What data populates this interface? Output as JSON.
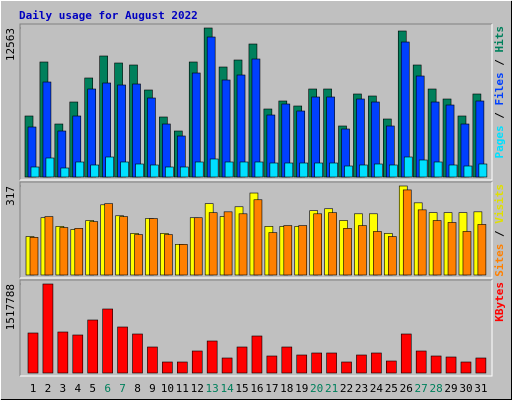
{
  "chart_data": [
    {
      "type": "bar",
      "title": "Daily usage for August 2022",
      "ylim": [
        0,
        12563
      ],
      "yticks": [
        12563
      ],
      "legend_separator": " / ",
      "series": [
        {
          "name": "Hits",
          "color": "#00805c",
          "values": [
            5143,
            9696,
            4468,
            6323,
            8347,
            10202,
            9611,
            9443,
            7335,
            5059,
            3878,
            9696,
            12563,
            9274,
            9864,
            11213,
            5733,
            6408,
            5986,
            7419,
            7419,
            4300,
            6998,
            6829,
            4890,
            12309,
            9443,
            7419,
            6576,
            5143,
            6998
          ]
        },
        {
          "name": "Files",
          "color": "#0040ff",
          "values": [
            4216,
            8009,
            3878,
            5143,
            7419,
            7925,
            7757,
            7841,
            6660,
            4468,
            3457,
            8768,
            11803,
            8178,
            8600,
            9949,
            5227,
            6155,
            5564,
            6745,
            6745,
            4047,
            6576,
            6323,
            4300,
            11382,
            8515,
            6323,
            6070,
            4468,
            6408
          ]
        },
        {
          "name": "Pages",
          "color": "#00e0ff",
          "values": [
            843,
            1602,
            759,
            1265,
            1012,
            1686,
            1265,
            1096,
            1012,
            843,
            843,
            1265,
            1518,
            1265,
            1265,
            1265,
            1180,
            1180,
            1180,
            1180,
            1180,
            927,
            1012,
            1096,
            1012,
            1686,
            1433,
            1265,
            1012,
            927,
            1096
          ]
        }
      ]
    },
    {
      "type": "bar",
      "ylim": [
        0,
        317
      ],
      "yticks": [
        317
      ],
      "legend_separator": " / ",
      "series": [
        {
          "name": "Visits",
          "color": "#ffff00",
          "values": [
            137,
            204,
            173,
            162,
            194,
            250,
            211,
            148,
            201,
            148,
            109,
            204,
            254,
            208,
            243,
            292,
            173,
            173,
            173,
            229,
            236,
            194,
            218,
            218,
            148,
            317,
            257,
            222,
            222,
            222,
            225
          ]
        },
        {
          "name": "Sites",
          "color": "#ff8000",
          "values": [
            134,
            208,
            169,
            166,
            190,
            254,
            208,
            144,
            201,
            144,
            109,
            204,
            222,
            225,
            218,
            268,
            151,
            176,
            176,
            218,
            222,
            166,
            176,
            155,
            137,
            303,
            232,
            194,
            187,
            155,
            180
          ]
        }
      ]
    },
    {
      "type": "bar",
      "ylim": [
        0,
        1517788
      ],
      "yticks": [
        1517788
      ],
      "categories": [
        "1",
        "2",
        "3",
        "4",
        "5",
        "6",
        "7",
        "8",
        "9",
        "10",
        "11",
        "12",
        "13",
        "14",
        "15",
        "16",
        "17",
        "18",
        "19",
        "20",
        "21",
        "22",
        "23",
        "24",
        "25",
        "26",
        "27",
        "28",
        "29",
        "30",
        "31"
      ],
      "category_colors": [
        "#000000",
        "#000000",
        "#000000",
        "#000000",
        "#000000",
        "#00805c",
        "#00805c",
        "#000000",
        "#000000",
        "#000000",
        "#000000",
        "#000000",
        "#00805c",
        "#00805c",
        "#000000",
        "#000000",
        "#000000",
        "#000000",
        "#000000",
        "#00805c",
        "#00805c",
        "#000000",
        "#000000",
        "#000000",
        "#000000",
        "#000000",
        "#00805c",
        "#00805c",
        "#000000",
        "#000000",
        "#000000"
      ],
      "series": [
        {
          "name": "KBytes",
          "color": "#ff0000",
          "values": [
            682160,
            1517788,
            699214,
            648052,
            903862,
            1091456,
            784484,
            665106,
            443404,
            187594,
            187594,
            375188,
            545728,
            255810,
            443404,
            630998,
            289918,
            443404,
            306972,
            341080,
            341080,
            187594,
            306972,
            341080,
            204648,
            665106,
            375188,
            289918,
            272864,
            187594,
            255810
          ]
        }
      ]
    }
  ]
}
